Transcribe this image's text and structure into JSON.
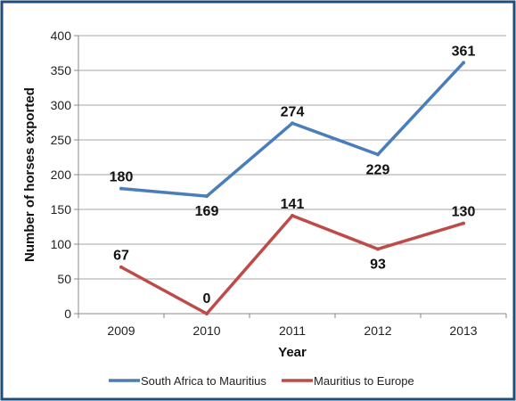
{
  "chart_data": {
    "type": "line",
    "categories": [
      "2009",
      "2010",
      "2011",
      "2012",
      "2013"
    ],
    "series": [
      {
        "name": "South Africa to Mauritius",
        "values": [
          180,
          169,
          274,
          229,
          361
        ],
        "color": "#4a7ebb"
      },
      {
        "name": "Mauritius to Europe",
        "values": [
          67,
          0,
          141,
          93,
          130
        ],
        "color": "#be4b48"
      }
    ],
    "title": "",
    "xlabel": "Year",
    "ylabel": "Number of horses exported",
    "ylim": [
      0,
      400
    ],
    "yticks": [
      0,
      50,
      100,
      150,
      200,
      250,
      300,
      350,
      400
    ],
    "grid": "horizontal",
    "legend_position": "bottom",
    "data_labels": true,
    "frame_color": "#1f4e79"
  }
}
